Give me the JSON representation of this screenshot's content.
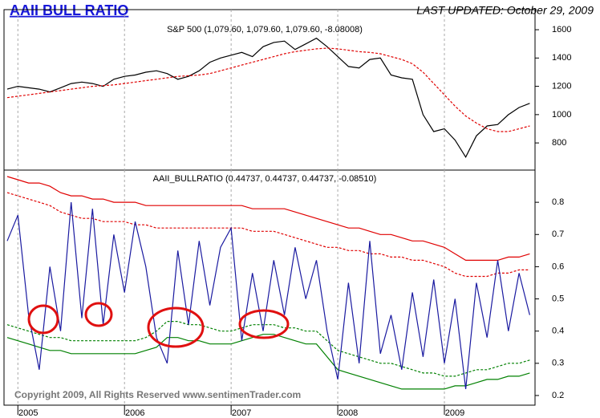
{
  "chart_data": [
    {
      "type": "line",
      "title": "AAII BULL RATIO",
      "subtitle": "LAST UPDATED:  October 29, 2009",
      "label": "S&P 500 (1,079.60, 1,079.60, 1,079.60, -8.08008)",
      "x": [
        2004.9,
        2005,
        2005.1,
        2005.2,
        2005.3,
        2005.4,
        2005.5,
        2005.6,
        2005.7,
        2005.8,
        2005.9,
        2006,
        2006.1,
        2006.2,
        2006.3,
        2006.4,
        2006.5,
        2006.6,
        2006.7,
        2006.8,
        2006.9,
        2007,
        2007.1,
        2007.2,
        2007.3,
        2007.4,
        2007.5,
        2007.6,
        2007.7,
        2007.8,
        2007.9,
        2008,
        2008.1,
        2008.2,
        2008.3,
        2008.4,
        2008.5,
        2008.6,
        2008.7,
        2008.8,
        2008.9,
        2009,
        2009.1,
        2009.2,
        2009.3,
        2009.4,
        2009.5,
        2009.6,
        2009.7,
        2009.8
      ],
      "series": [
        {
          "color": "#000000",
          "dashed": false,
          "values": [
            1180,
            1200,
            1190,
            1180,
            1160,
            1190,
            1220,
            1230,
            1220,
            1200,
            1250,
            1270,
            1280,
            1300,
            1310,
            1290,
            1250,
            1270,
            1310,
            1370,
            1400,
            1420,
            1440,
            1410,
            1480,
            1510,
            1520,
            1460,
            1500,
            1540,
            1480,
            1410,
            1340,
            1330,
            1390,
            1400,
            1280,
            1260,
            1250,
            1000,
            880,
            900,
            820,
            700,
            850,
            920,
            930,
            1000,
            1050,
            1080
          ]
        },
        {
          "color": "#e00000",
          "dashed": true,
          "values": [
            1120,
            1130,
            1140,
            1150,
            1160,
            1170,
            1180,
            1190,
            1200,
            1205,
            1210,
            1220,
            1230,
            1240,
            1250,
            1260,
            1270,
            1275,
            1280,
            1290,
            1310,
            1330,
            1350,
            1370,
            1390,
            1410,
            1430,
            1445,
            1455,
            1465,
            1470,
            1465,
            1455,
            1445,
            1440,
            1430,
            1410,
            1390,
            1360,
            1300,
            1220,
            1140,
            1060,
            990,
            940,
            900,
            880,
            880,
            900,
            920
          ]
        }
      ],
      "xlim": [
        2004.87,
        2009.85
      ],
      "xticks": [
        2005,
        2006,
        2007,
        2008,
        2009
      ],
      "ylim": [
        608,
        1742
      ],
      "yticks": [
        800,
        1000,
        1200,
        1400,
        1600
      ],
      "grid": "x"
    },
    {
      "type": "line",
      "label": "AAII_BULLRATIO (0.44737, 0.44737, 0.44737, -0.08510)",
      "annotations": [
        "Copyright 2009, All Rights Reserved  www.sentimenTrader.com"
      ],
      "x": [
        2004.9,
        2005,
        2005.1,
        2005.2,
        2005.3,
        2005.4,
        2005.5,
        2005.6,
        2005.7,
        2005.8,
        2005.9,
        2006,
        2006.1,
        2006.2,
        2006.3,
        2006.4,
        2006.5,
        2006.6,
        2006.7,
        2006.8,
        2006.9,
        2007,
        2007.1,
        2007.2,
        2007.3,
        2007.4,
        2007.5,
        2007.6,
        2007.7,
        2007.8,
        2007.9,
        2008,
        2008.1,
        2008.2,
        2008.3,
        2008.4,
        2008.5,
        2008.6,
        2008.7,
        2008.8,
        2008.9,
        2009,
        2009.1,
        2009.2,
        2009.3,
        2009.4,
        2009.5,
        2009.6,
        2009.7,
        2009.8
      ],
      "series": [
        {
          "color": "#e00000",
          "dashed": false,
          "values": [
            0.88,
            0.87,
            0.86,
            0.86,
            0.85,
            0.83,
            0.82,
            0.82,
            0.81,
            0.81,
            0.8,
            0.8,
            0.8,
            0.79,
            0.79,
            0.79,
            0.79,
            0.79,
            0.79,
            0.79,
            0.79,
            0.79,
            0.79,
            0.78,
            0.78,
            0.78,
            0.78,
            0.77,
            0.76,
            0.75,
            0.74,
            0.73,
            0.72,
            0.72,
            0.71,
            0.7,
            0.7,
            0.69,
            0.68,
            0.68,
            0.67,
            0.66,
            0.64,
            0.62,
            0.62,
            0.62,
            0.62,
            0.63,
            0.63,
            0.64
          ]
        },
        {
          "color": "#e00000",
          "dashed": true,
          "values": [
            0.83,
            0.82,
            0.81,
            0.8,
            0.79,
            0.77,
            0.76,
            0.75,
            0.75,
            0.74,
            0.74,
            0.74,
            0.73,
            0.73,
            0.72,
            0.72,
            0.72,
            0.72,
            0.72,
            0.72,
            0.72,
            0.72,
            0.72,
            0.71,
            0.71,
            0.71,
            0.7,
            0.69,
            0.68,
            0.67,
            0.66,
            0.66,
            0.65,
            0.65,
            0.64,
            0.64,
            0.63,
            0.63,
            0.62,
            0.62,
            0.61,
            0.6,
            0.58,
            0.57,
            0.57,
            0.57,
            0.58,
            0.58,
            0.59,
            0.59
          ]
        },
        {
          "color": "#008000",
          "dashed": true,
          "values": [
            0.42,
            0.41,
            0.4,
            0.39,
            0.38,
            0.38,
            0.37,
            0.37,
            0.37,
            0.37,
            0.37,
            0.37,
            0.37,
            0.38,
            0.4,
            0.43,
            0.43,
            0.42,
            0.42,
            0.41,
            0.4,
            0.4,
            0.41,
            0.42,
            0.42,
            0.42,
            0.41,
            0.41,
            0.4,
            0.4,
            0.37,
            0.34,
            0.33,
            0.32,
            0.31,
            0.3,
            0.3,
            0.29,
            0.28,
            0.27,
            0.27,
            0.26,
            0.26,
            0.27,
            0.28,
            0.28,
            0.29,
            0.3,
            0.3,
            0.31
          ]
        },
        {
          "color": "#008000",
          "dashed": false,
          "values": [
            0.38,
            0.37,
            0.36,
            0.35,
            0.34,
            0.34,
            0.33,
            0.33,
            0.33,
            0.33,
            0.33,
            0.33,
            0.33,
            0.34,
            0.35,
            0.38,
            0.38,
            0.37,
            0.37,
            0.36,
            0.36,
            0.36,
            0.37,
            0.38,
            0.39,
            0.39,
            0.38,
            0.37,
            0.36,
            0.36,
            0.32,
            0.28,
            0.27,
            0.26,
            0.25,
            0.24,
            0.23,
            0.22,
            0.22,
            0.22,
            0.22,
            0.22,
            0.23,
            0.23,
            0.24,
            0.25,
            0.25,
            0.26,
            0.26,
            0.27
          ]
        },
        {
          "color": "#1a1aa0",
          "dashed": false,
          "values": [
            0.68,
            0.76,
            0.45,
            0.28,
            0.6,
            0.4,
            0.8,
            0.44,
            0.78,
            0.42,
            0.7,
            0.52,
            0.74,
            0.6,
            0.38,
            0.3,
            0.65,
            0.42,
            0.68,
            0.48,
            0.66,
            0.72,
            0.37,
            0.58,
            0.4,
            0.62,
            0.45,
            0.66,
            0.5,
            0.62,
            0.4,
            0.25,
            0.55,
            0.3,
            0.68,
            0.33,
            0.45,
            0.28,
            0.52,
            0.32,
            0.56,
            0.3,
            0.5,
            0.22,
            0.55,
            0.38,
            0.62,
            0.4,
            0.58,
            0.45
          ]
        }
      ],
      "xlim": [
        2004.87,
        2009.85
      ],
      "xticks": [
        2005,
        2006,
        2007,
        2008,
        2009
      ],
      "ylim": [
        0.17,
        0.9
      ],
      "yticks": [
        0.2,
        0.3,
        0.4,
        0.5,
        0.6,
        0.7,
        0.8
      ],
      "grid": "x"
    }
  ]
}
